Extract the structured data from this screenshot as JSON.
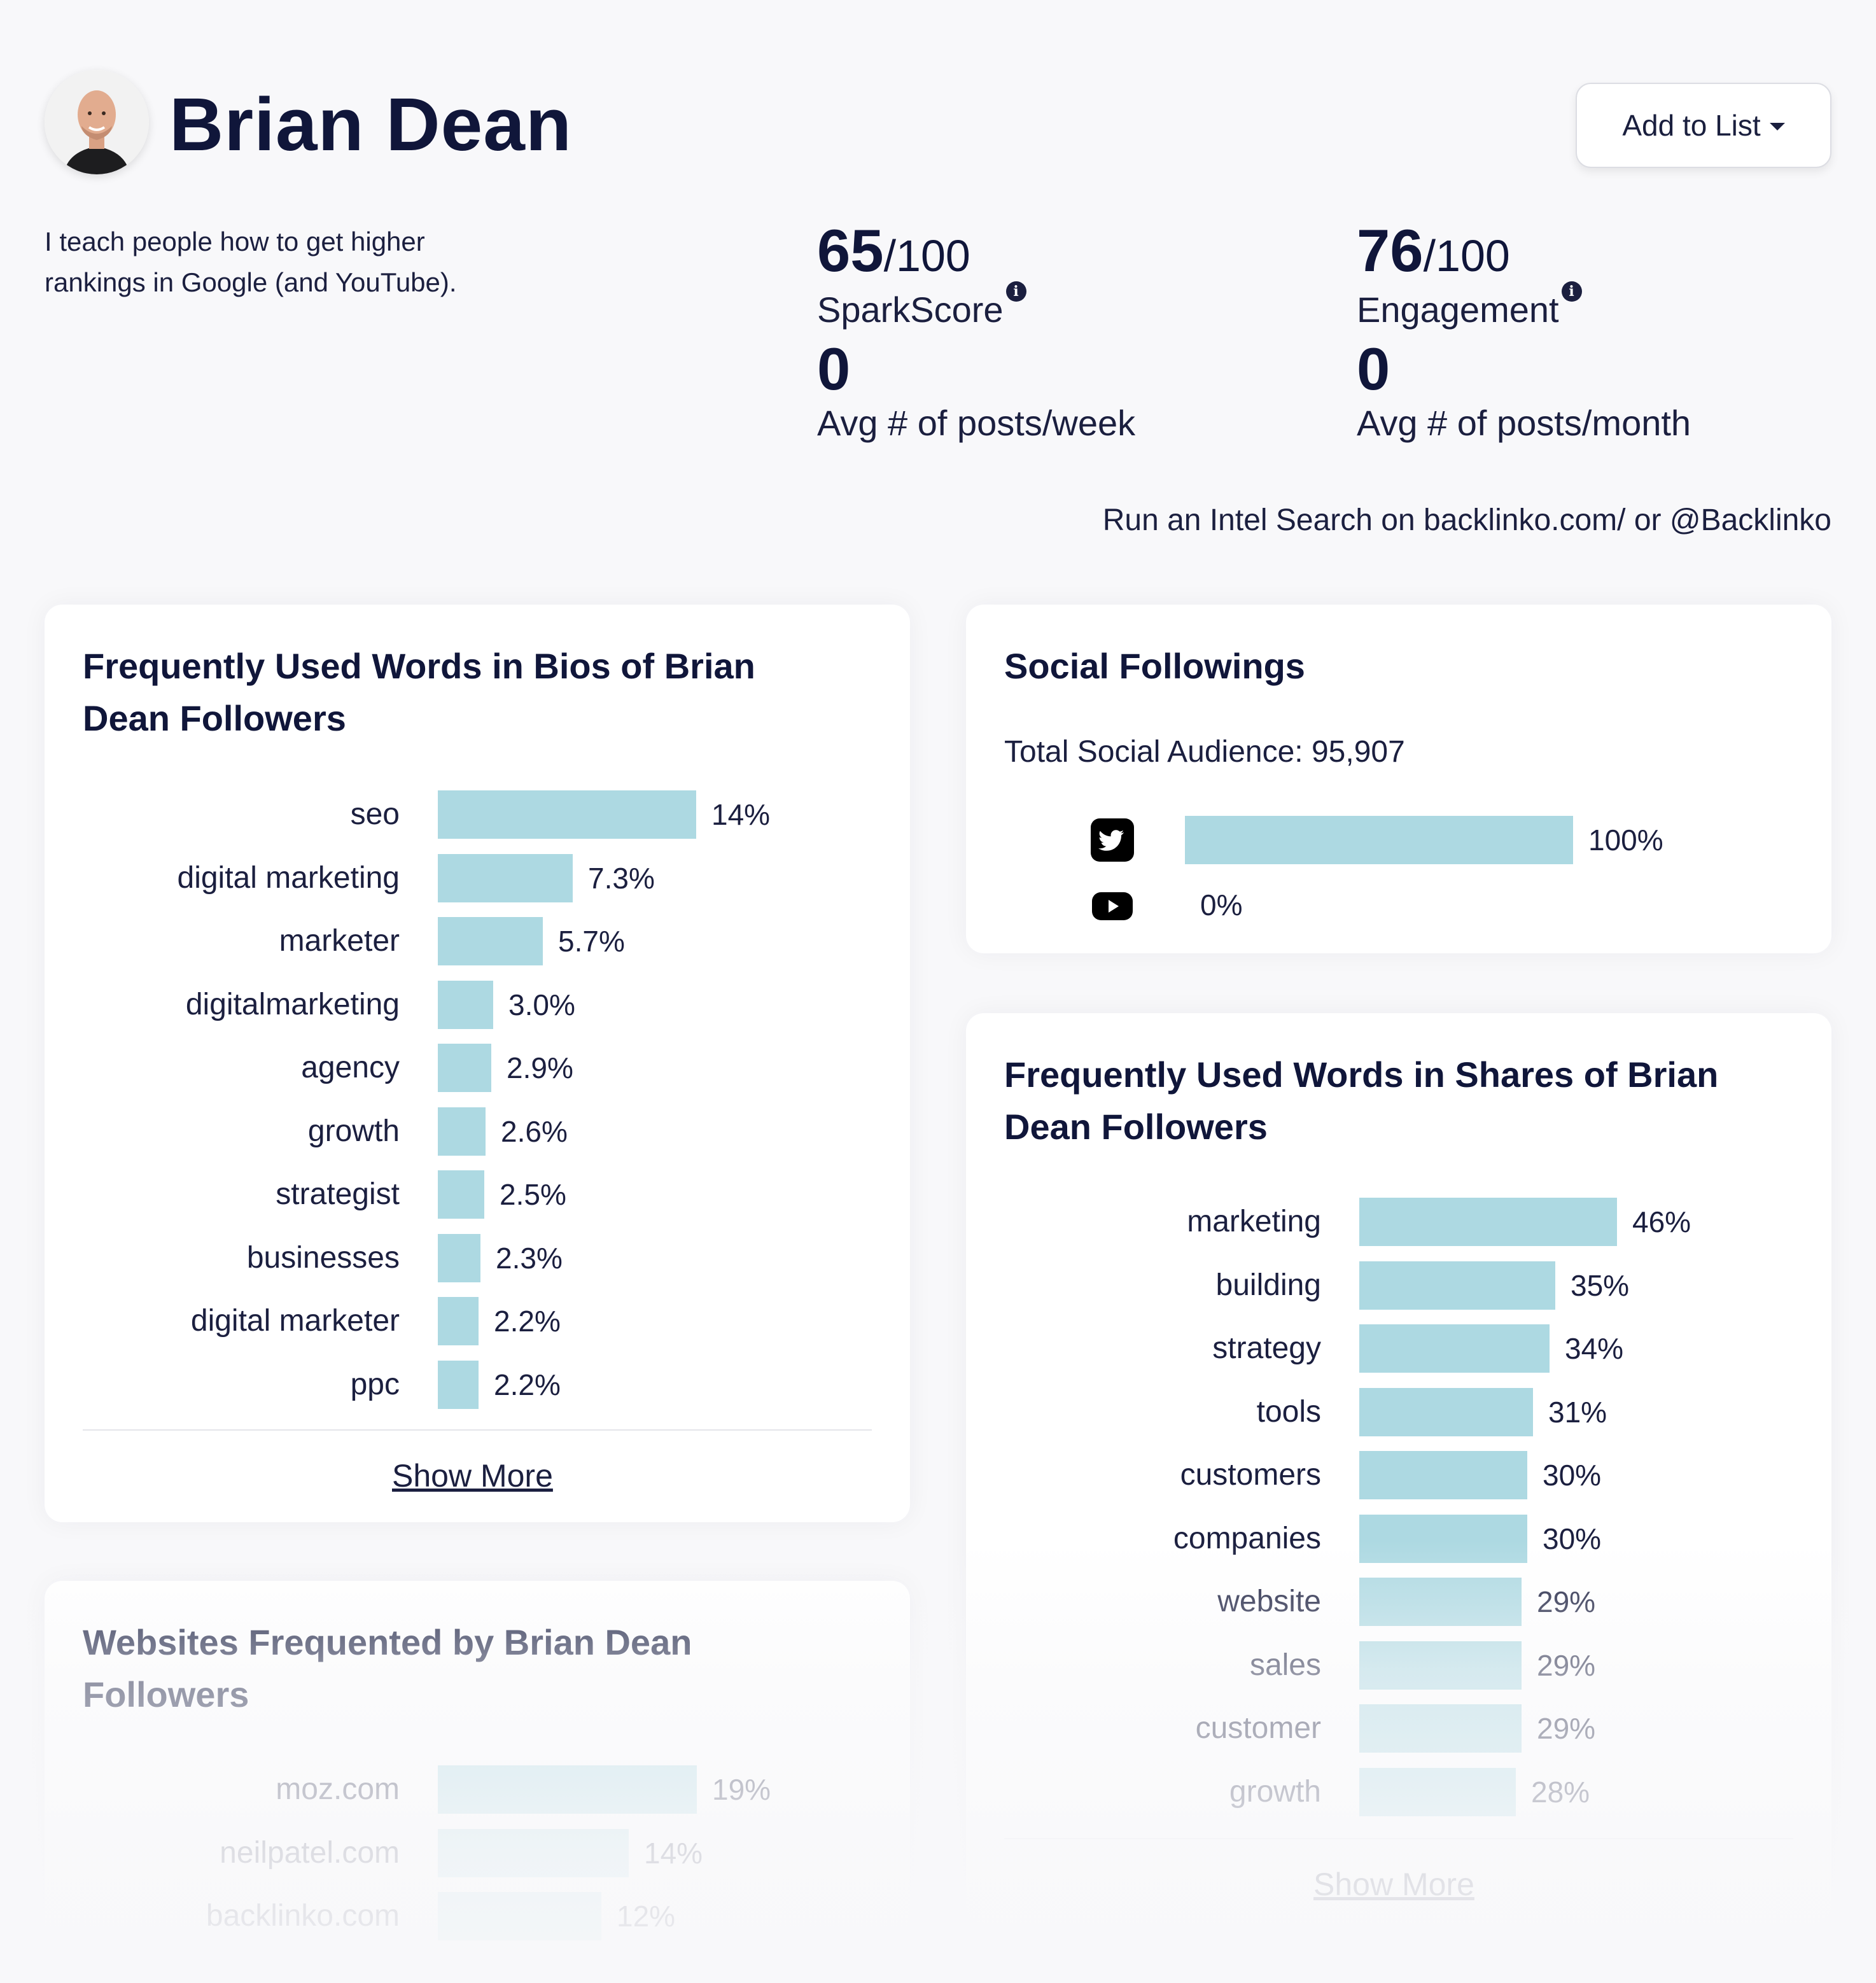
{
  "profile": {
    "name": "Brian Dean",
    "bio": "I teach people how to get higher rankings in Google (and YouTube).",
    "add_to_list": "Add to List"
  },
  "stats": {
    "spark": {
      "score": "65",
      "denom": "/100",
      "label": "SparkScore",
      "zero": "0",
      "sub": "Avg # of posts/week"
    },
    "engagement": {
      "score": "76",
      "denom": "/100",
      "label": "Engagement",
      "zero": "0",
      "sub": "Avg # of posts/month"
    }
  },
  "intel_search": "Run an Intel Search on backlinko.com/ or @Backlinko",
  "bios_card": {
    "title": "Frequently Used Words in Bios of Brian Dean Followers",
    "show_more": "Show More",
    "items": [
      {
        "label": "seo",
        "value": 14,
        "text": "14%"
      },
      {
        "label": "digital marketing",
        "value": 7.3,
        "text": "7.3%"
      },
      {
        "label": "marketer",
        "value": 5.7,
        "text": "5.7%"
      },
      {
        "label": "digitalmarketing",
        "value": 3.0,
        "text": "3.0%"
      },
      {
        "label": "agency",
        "value": 2.9,
        "text": "2.9%"
      },
      {
        "label": "growth",
        "value": 2.6,
        "text": "2.6%"
      },
      {
        "label": "strategist",
        "value": 2.5,
        "text": "2.5%"
      },
      {
        "label": "businesses",
        "value": 2.3,
        "text": "2.3%"
      },
      {
        "label": "digital marketer",
        "value": 2.2,
        "text": "2.2%"
      },
      {
        "label": "ppc",
        "value": 2.2,
        "text": "2.2%"
      }
    ]
  },
  "social_card": {
    "title": "Social Followings",
    "total": "Total Social Audience: 95,907",
    "items": [
      {
        "icon": "twitter-icon",
        "value": 100,
        "text": "100%"
      },
      {
        "icon": "youtube-icon",
        "value": 0,
        "text": "0%"
      }
    ]
  },
  "shares_card": {
    "title": "Frequently Used Words in Shares of Brian Dean Followers",
    "show_more": "Show More",
    "items": [
      {
        "label": "marketing",
        "value": 46,
        "text": "46%"
      },
      {
        "label": "building",
        "value": 35,
        "text": "35%"
      },
      {
        "label": "strategy",
        "value": 34,
        "text": "34%"
      },
      {
        "label": "tools",
        "value": 31,
        "text": "31%"
      },
      {
        "label": "customers",
        "value": 30,
        "text": "30%"
      },
      {
        "label": "companies",
        "value": 30,
        "text": "30%"
      },
      {
        "label": "website",
        "value": 29,
        "text": "29%"
      },
      {
        "label": "sales",
        "value": 29,
        "text": "29%"
      },
      {
        "label": "customer",
        "value": 29,
        "text": "29%"
      },
      {
        "label": "growth",
        "value": 28,
        "text": "28%"
      }
    ]
  },
  "websites_card": {
    "title": "Websites Frequented by Brian Dean Followers",
    "items": [
      {
        "label": "moz.com",
        "value": 19,
        "text": "19%"
      },
      {
        "label": "neilpatel.com",
        "value": 14,
        "text": "14%"
      },
      {
        "label": "backlinko.com",
        "value": 12,
        "text": "12%"
      }
    ]
  },
  "colors": {
    "bar": "#add9e2",
    "title": "#10163a",
    "text": "#1b1f3f"
  }
}
